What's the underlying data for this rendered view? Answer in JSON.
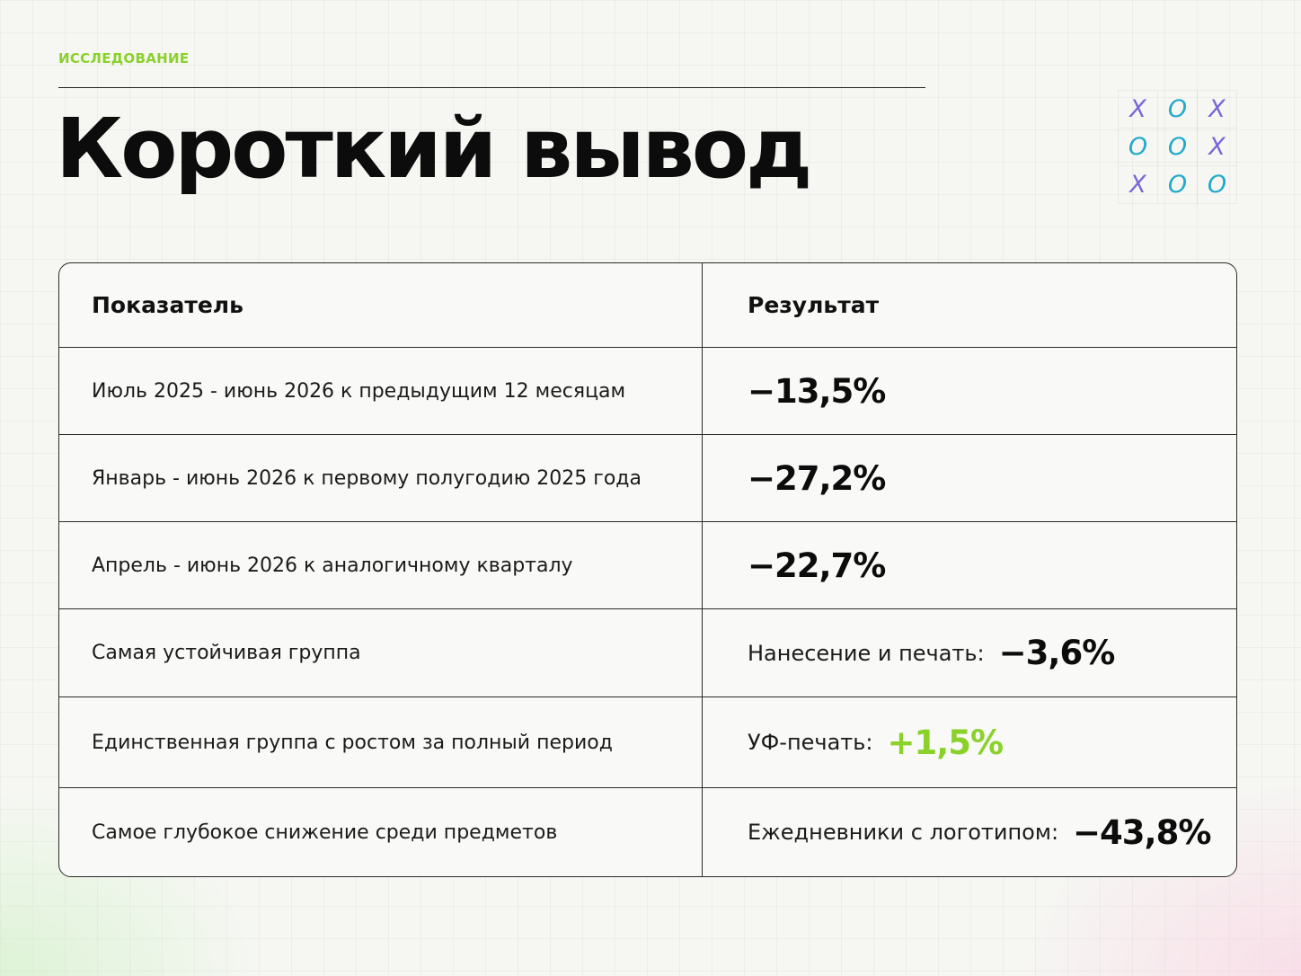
{
  "header": {
    "eyebrow": "ИССЛЕДОВАНИЕ",
    "title": "Короткий вывод"
  },
  "decoration": {
    "tic_tac_toe": [
      [
        "X",
        "O",
        "X"
      ],
      [
        "O",
        "O",
        "X"
      ],
      [
        "X",
        "O",
        "O"
      ]
    ],
    "x_color": "#7766d6",
    "o_color": "#22aacc"
  },
  "table": {
    "headers": {
      "indicator": "Показатель",
      "result": "Результат"
    },
    "rows": [
      {
        "indicator": "Июль 2025 - июнь 2026 к предыдущим 12 месяцам",
        "result_label": "",
        "result_value": "−13,5%",
        "trend": "negative"
      },
      {
        "indicator": "Январь - июнь 2026 к первому полугодию 2025 года",
        "result_label": "",
        "result_value": "−27,2%",
        "trend": "negative"
      },
      {
        "indicator": "Апрель - июнь 2026 к аналогичному кварталу",
        "result_label": "",
        "result_value": "−22,7%",
        "trend": "negative"
      },
      {
        "indicator": "Самая устойчивая группа",
        "result_label": "Нанесение и печать:",
        "result_value": "−3,6%",
        "trend": "negative"
      },
      {
        "indicator": "Единственная группа с ростом за полный период",
        "result_label": "УФ-печать:",
        "result_value": "+1,5%",
        "trend": "positive"
      },
      {
        "indicator": "Самое глубокое снижение среди предметов",
        "result_label": "Ежедневники с логотипом:",
        "result_value": "−43,8%",
        "trend": "negative"
      }
    ]
  },
  "colors": {
    "accent_green": "#8ad12a",
    "text": "#0c0c0c",
    "border": "#2a2a2a"
  }
}
